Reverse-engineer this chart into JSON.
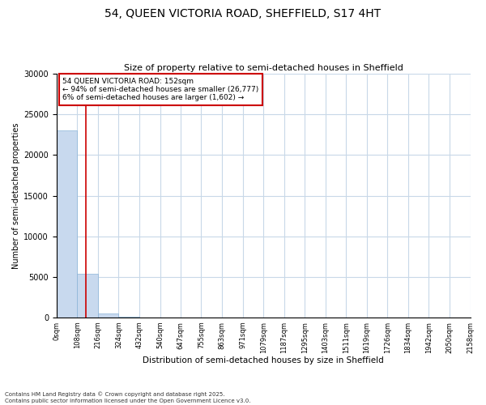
{
  "title_line1": "54, QUEEN VICTORIA ROAD, SHEFFIELD, S17 4HT",
  "title_line2": "Size of property relative to semi-detached houses in Sheffield",
  "xlabel": "Distribution of semi-detached houses by size in Sheffield",
  "ylabel": "Number of semi-detached properties",
  "property_size": 152,
  "annotation_line1": "54 QUEEN VICTORIA ROAD: 152sqm",
  "annotation_line2": "← 94% of semi-detached houses are smaller (26,777)",
  "annotation_line3": "6% of semi-detached houses are larger (1,602) →",
  "bin_edges": [
    0,
    108,
    216,
    324,
    432,
    540,
    647,
    755,
    863,
    971,
    1079,
    1187,
    1295,
    1403,
    1511,
    1619,
    1726,
    1834,
    1942,
    2050,
    2158
  ],
  "bin_counts": [
    23000,
    5400,
    500,
    80,
    20,
    10,
    5,
    3,
    2,
    1,
    1,
    1,
    0,
    0,
    0,
    0,
    0,
    0,
    0,
    0
  ],
  "bar_color": "#c8d9ee",
  "bar_edge_color": "#8ab4d8",
  "vline_color": "#cc0000",
  "annotation_box_color": "#cc0000",
  "background_color": "#ffffff",
  "grid_color": "#c8d8e8",
  "footnote": "Contains HM Land Registry data © Crown copyright and database right 2025.\nContains public sector information licensed under the Open Government Licence v3.0.",
  "ylim": [
    0,
    30000
  ],
  "yticks": [
    0,
    5000,
    10000,
    15000,
    20000,
    25000,
    30000
  ]
}
